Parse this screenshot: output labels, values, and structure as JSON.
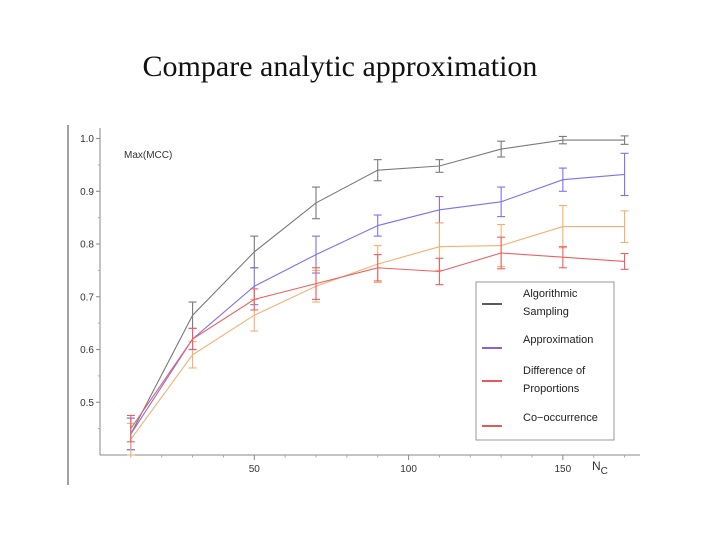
{
  "slide": {
    "title": "Compare analytic approximation"
  },
  "chart_data": {
    "type": "line",
    "title": "",
    "xlabel": "N",
    "xlabel_sub": "C",
    "ylabel": "Max(MCC)",
    "xlim": [
      0,
      175
    ],
    "ylim": [
      0.4,
      1.02
    ],
    "x_ticks": [
      50,
      100,
      150
    ],
    "y_ticks": [
      0.5,
      0.6,
      0.7,
      0.8,
      0.9,
      1.0
    ],
    "y_tick_labels": [
      "0.5",
      "0.6",
      "0.7",
      "0.8",
      "0.9",
      "1.0"
    ],
    "x": [
      10,
      30,
      50,
      70,
      90,
      110,
      130,
      150,
      170
    ],
    "legend_position": "right",
    "series": [
      {
        "name": "Algorithmic Sampling",
        "legend_lines": [
          "Algorithmic",
          "Sampling"
        ],
        "color": "#7a7a7a",
        "legend_color": "#222222",
        "values": [
          0.44,
          0.665,
          0.785,
          0.878,
          0.94,
          0.948,
          0.98,
          0.997,
          0.997
        ],
        "errors": [
          0.03,
          0.025,
          0.03,
          0.03,
          0.02,
          0.012,
          0.015,
          0.007,
          0.008
        ]
      },
      {
        "name": "Approximation",
        "legend_lines": [
          "Approximation"
        ],
        "color": "#8070f0",
        "legend_color": "#6a2ad8",
        "values": [
          0.44,
          0.62,
          0.72,
          0.78,
          0.835,
          0.865,
          0.88,
          0.922,
          0.932
        ],
        "errors": [
          0.03,
          0.02,
          0.035,
          0.035,
          0.02,
          0.025,
          0.028,
          0.022,
          0.04
        ]
      },
      {
        "name": "Difference of Proportions",
        "legend_lines": [
          "Difference of",
          "Proportions"
        ],
        "color": "#f5b070",
        "legend_color": "#e02020",
        "values": [
          0.43,
          0.59,
          0.665,
          0.72,
          0.762,
          0.795,
          0.797,
          0.833,
          0.833
        ],
        "errors": [
          0.03,
          0.025,
          0.03,
          0.03,
          0.035,
          0.045,
          0.04,
          0.04,
          0.03
        ]
      },
      {
        "name": "Co-occurrence",
        "legend_lines": [
          "Co−occurrence"
        ],
        "color": "#ee6060",
        "legend_color": "#e02020",
        "values": [
          0.45,
          0.62,
          0.695,
          0.725,
          0.755,
          0.748,
          0.783,
          0.775,
          0.767
        ],
        "errors": [
          0.025,
          0.02,
          0.02,
          0.03,
          0.025,
          0.025,
          0.03,
          0.02,
          0.015
        ]
      }
    ]
  }
}
